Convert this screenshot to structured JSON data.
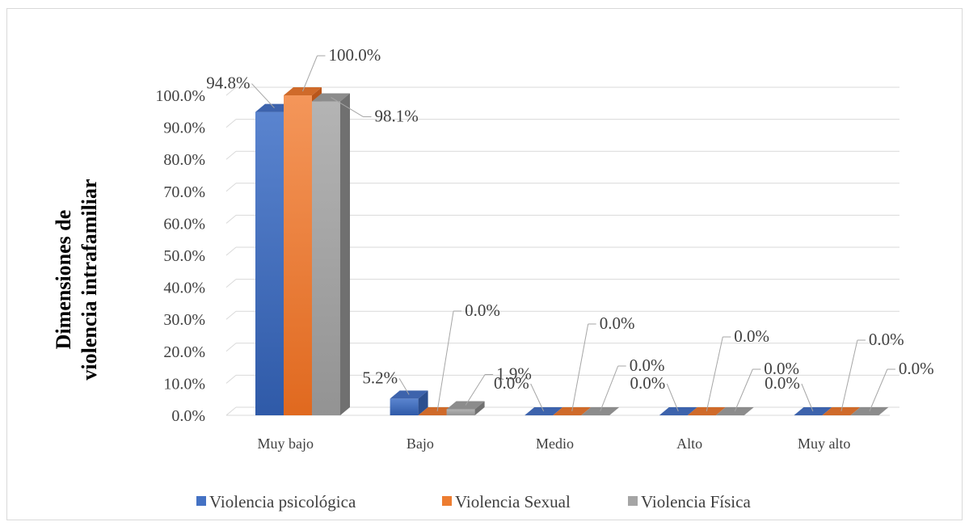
{
  "chart_data": {
    "type": "bar",
    "title": "",
    "xlabel": "",
    "ylabel_lines": [
      "Dimensiones de",
      "violencia intrafamiliar"
    ],
    "ylim": [
      0,
      100
    ],
    "yticks": [
      "0.0%",
      "10.0%",
      "20.0%",
      "30.0%",
      "40.0%",
      "50.0%",
      "60.0%",
      "70.0%",
      "80.0%",
      "90.0%",
      "100.0%"
    ],
    "categories": [
      "Muy bajo",
      "Bajo",
      "Medio",
      "Alto",
      "Muy alto"
    ],
    "series": [
      {
        "name": "Violencia psicológica",
        "values": [
          94.8,
          5.2,
          0.0,
          0.0,
          0.0
        ],
        "labels": [
          "94.8%",
          "5.2%",
          "0.0%",
          "0.0%",
          "0.0%"
        ],
        "color": "#4472c4"
      },
      {
        "name": "Violencia Sexual",
        "values": [
          100.0,
          0.0,
          0.0,
          0.0,
          0.0
        ],
        "labels": [
          "100.0%",
          "0.0%",
          "0.0%",
          "0.0%",
          "0.0%"
        ],
        "color": "#ed7d31"
      },
      {
        "name": "Violencia Física",
        "values": [
          98.1,
          1.9,
          0.0,
          0.0,
          0.0
        ],
        "labels": [
          "98.1%",
          "1.9%",
          "0.0%",
          "0.0%",
          "0.0%"
        ],
        "color": "#a5a5a5"
      }
    ],
    "grid": true,
    "legend_position": "bottom"
  }
}
